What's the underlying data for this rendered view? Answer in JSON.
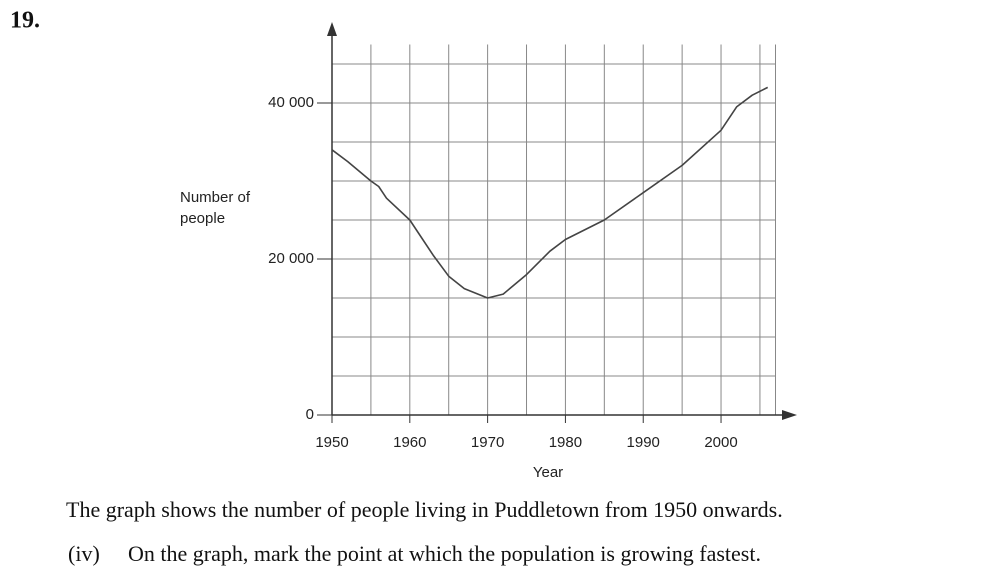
{
  "question_number": "19.",
  "chart_data": {
    "type": "line",
    "ylabel": "Number of people",
    "xlabel": "Year",
    "x": [
      1950,
      1952,
      1955,
      1956,
      1957,
      1960,
      1963,
      1965,
      1967,
      1970,
      1972,
      1975,
      1978,
      1980,
      1985,
      1990,
      1995,
      2000,
      2002,
      2004,
      2006
    ],
    "series": [
      {
        "color": "#444444",
        "values": [
          34000,
          32500,
          30000,
          29300,
          27800,
          25000,
          20500,
          17800,
          16200,
          15000,
          15500,
          18000,
          21000,
          22500,
          25000,
          28500,
          32000,
          36500,
          39500,
          41000,
          42000
        ]
      }
    ],
    "xlim": [
      1950,
      2007
    ],
    "xticks": [
      1950,
      1960,
      1970,
      1980,
      1990,
      2000
    ],
    "ylim": [
      0,
      47500
    ],
    "yticks": [
      0,
      {
        "value": 20000,
        "label": "20 000"
      },
      {
        "value": 40000,
        "label": "40 000"
      }
    ],
    "grid": true
  },
  "text": {
    "statement": "The graph shows the number of people living in Puddletown from 1950 onwards.",
    "part_label": "(iv)",
    "part_text": "On the graph, mark the point at which the population is growing fastest."
  }
}
